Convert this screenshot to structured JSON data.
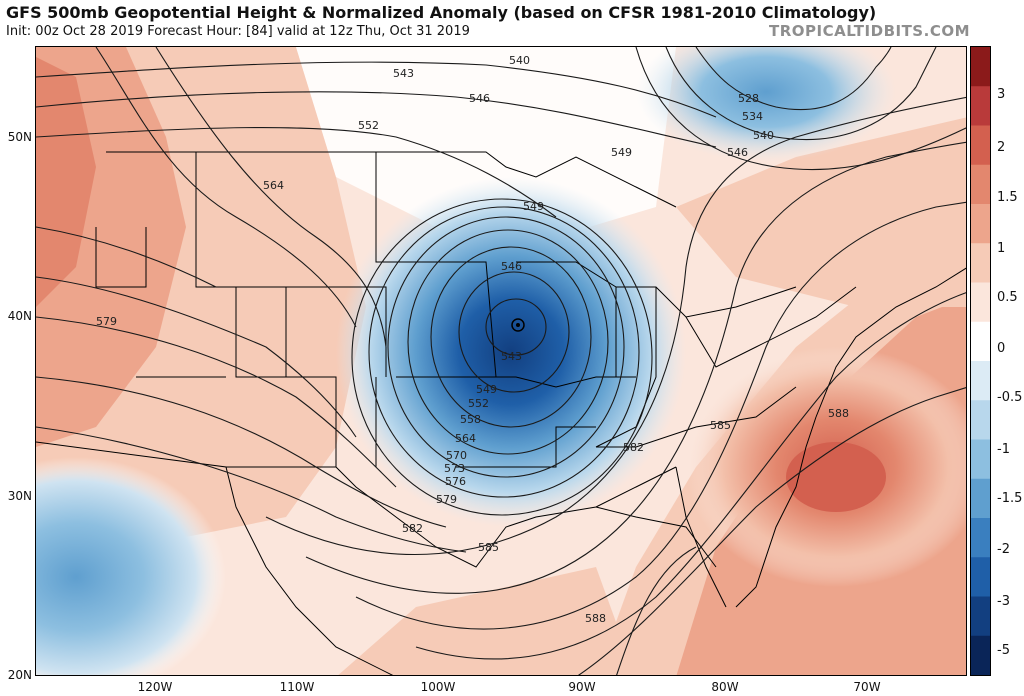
{
  "header": {
    "title": "GFS 500mb Geopotential Height & Normalized Anomaly (based on CFSR 1981-2010 Climatology)",
    "subtitle": "Init: 00z Oct 28 2019   Forecast Hour: [84]   valid at 12z Thu, Oct 31 2019",
    "source": "TROPICALTIDBITS.COM"
  },
  "axes": {
    "lat_labels": [
      "50N",
      "40N",
      "30N",
      "20N"
    ],
    "lon_labels": [
      "120W",
      "110W",
      "100W",
      "90W",
      "80W",
      "70W"
    ]
  },
  "colorbar": {
    "labels": [
      "3",
      "2",
      "1.5",
      "1",
      "0.5",
      "0",
      "-0.5",
      "-1",
      "-1.5",
      "-2",
      "-3",
      "-5"
    ],
    "colors": [
      "#8b1a1a",
      "#b93a3a",
      "#d3604f",
      "#e3876e",
      "#eda58c",
      "#f6cbb7",
      "#fbe6dc",
      "#ffffff",
      "#dcebf5",
      "#b8d7ec",
      "#8dbfe0",
      "#5f9fcf",
      "#3a7fbf",
      "#1f5fa8",
      "#123f80",
      "#0a2558"
    ]
  },
  "contour_labels": [
    {
      "text": "540"
    },
    {
      "text": "543"
    },
    {
      "text": "546"
    },
    {
      "text": "552"
    },
    {
      "text": "528"
    },
    {
      "text": "534"
    },
    {
      "text": "540"
    },
    {
      "text": "546"
    },
    {
      "text": "549"
    },
    {
      "text": "564"
    },
    {
      "text": "549"
    },
    {
      "text": "546"
    },
    {
      "text": "579"
    },
    {
      "text": "543"
    },
    {
      "text": "549"
    },
    {
      "text": "552"
    },
    {
      "text": "558"
    },
    {
      "text": "564"
    },
    {
      "text": "570"
    },
    {
      "text": "573"
    },
    {
      "text": "576"
    },
    {
      "text": "579"
    },
    {
      "text": "582"
    },
    {
      "text": "585"
    },
    {
      "text": "582"
    },
    {
      "text": "585"
    },
    {
      "text": "588"
    },
    {
      "text": "588"
    }
  ]
}
